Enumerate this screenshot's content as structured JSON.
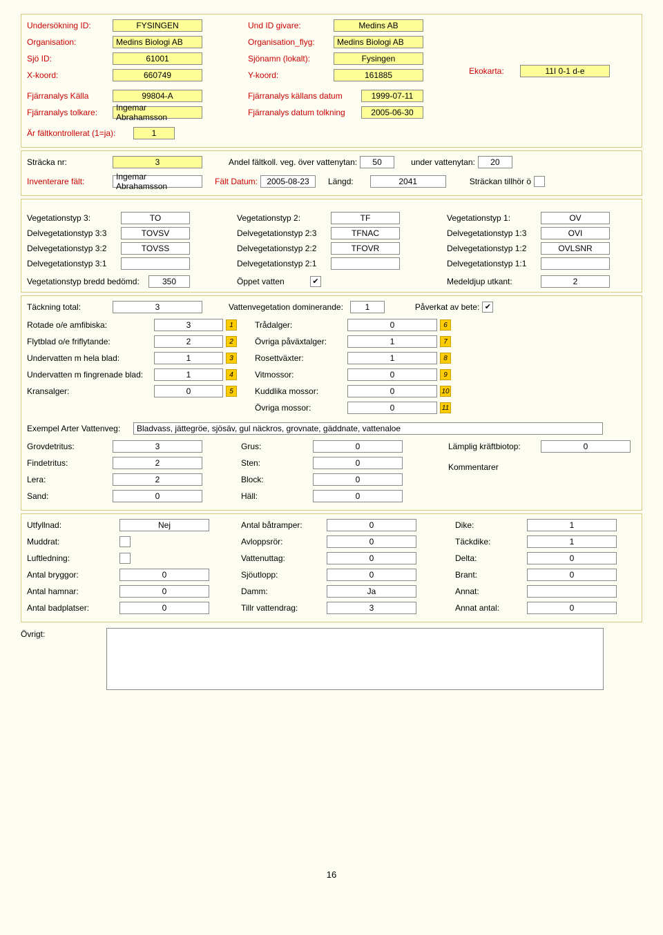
{
  "header": {
    "undersokning_id_lbl": "Undersökning ID:",
    "undersokning_id": "FYSINGEN",
    "organisation_lbl": "Organisation:",
    "organisation": "Medins Biologi AB",
    "sjo_id_lbl": "Sjö ID:",
    "sjo_id": "61001",
    "xkoord_lbl": "X-koord:",
    "xkoord": "660749",
    "und_id_givare_lbl": "Und ID givare:",
    "und_id_givare": "Medins AB",
    "organisation_flyg_lbl": "Organisation_flyg:",
    "organisation_flyg": "Medins Biologi AB",
    "sjonamn_lbl": "Sjönamn (lokalt):",
    "sjonamn": "Fysingen",
    "ykoord_lbl": "Y-koord:",
    "ykoord": "161885",
    "ekokarta_lbl": "Ekokarta:",
    "ekokarta": "11I 0-1 d-e"
  },
  "fjarr": {
    "kalla_lbl": "Fjärranalys Källa",
    "kalla": "99804-A",
    "tolkare_lbl": "Fjärranalys tolkare:",
    "tolkare": "Ingemar Abrahamsson",
    "kallans_datum_lbl": "Fjärranalys källans datum",
    "kallans_datum": "1999-07-11",
    "datum_tolkning_lbl": "Fjärranalys datum tolkning",
    "datum_tolkning": "2005-06-30",
    "faltkontrollerat_lbl": "Är fältkontrollerat (1=ja):",
    "faltkontrollerat": "1"
  },
  "stracka": {
    "nr_lbl": "Sträcka nr:",
    "nr": "3",
    "andel_lbl": "Andel fältkoll. veg. över vattenytan:",
    "andel_over": "50",
    "under_lbl": "under vattenytan:",
    "under": "20",
    "inventerare_lbl": "Inventerare fält:",
    "inventerare": "Ingemar Abrahamsson",
    "falt_datum_lbl": "Fält Datum:",
    "falt_datum": "2005-08-23",
    "langd_lbl": "Längd:",
    "langd": "2041",
    "tillhor_lbl": "Sträckan tillhör ö"
  },
  "veg": {
    "v3_lbl": "Vegetationstyp 3:",
    "v3": "TO",
    "v2_lbl": "Vegetationstyp 2:",
    "v2": "TF",
    "v1_lbl": "Vegetationstyp 1:",
    "v1": "OV",
    "d33_lbl": "Delvegetationstyp 3:3",
    "d33": "TOVSV",
    "d23_lbl": "Delvegetationstyp 2:3",
    "d23": "TFNAC",
    "d13_lbl": "Delvegetationstyp 1:3",
    "d13": "OVI",
    "d32_lbl": "Delvegetationstyp 3:2",
    "d32": "TOVSS",
    "d22_lbl": "Delvegetationstyp 2:2",
    "d22": "TFOVR",
    "d12_lbl": "Delvegetationstyp 1:2",
    "d12": "OVLSNR",
    "d31_lbl": "Delvegetationstyp 3:1",
    "d31": "",
    "d21_lbl": "Delvegetationstyp 2:1",
    "d21": "",
    "d11_lbl": "Delvegetationstyp 1:1",
    "d11": "",
    "bredd_lbl": "Vegetationstyp bredd bedömd:",
    "bredd": "350",
    "oppet_lbl": "Öppet vatten",
    "oppet_checked": "✔",
    "medel_lbl": "Medeldjup utkant:",
    "medel": "2"
  },
  "tack": {
    "total_lbl": "Täckning total:",
    "total": "3",
    "dom_lbl": "Vattenvegetation dominerande:",
    "dom": "1",
    "paverkat_lbl": "Påverkat av bete:",
    "paverkat": "✔",
    "rows_left": [
      {
        "lbl": "Rotade o/e amfibiska:",
        "val": "3",
        "num": "1"
      },
      {
        "lbl": "Flytblad o/e friflytande:",
        "val": "2",
        "num": "2"
      },
      {
        "lbl": "Undervatten m hela blad:",
        "val": "1",
        "num": "3"
      },
      {
        "lbl": "Undervatten m fingrenade blad:",
        "val": "1",
        "num": "4"
      },
      {
        "lbl": "Kransalger:",
        "val": "0",
        "num": "5"
      }
    ],
    "rows_mid": [
      {
        "lbl": "Trådalger:",
        "val": "0",
        "num": "6"
      },
      {
        "lbl": "Övriga påväxtalger:",
        "val": "1",
        "num": "7"
      },
      {
        "lbl": "Rosettväxter:",
        "val": "1",
        "num": "8"
      },
      {
        "lbl": "Vitmossor:",
        "val": "0",
        "num": "9"
      },
      {
        "lbl": "Kuddlika mossor:",
        "val": "0",
        "num": "10"
      },
      {
        "lbl": "Övriga mossor:",
        "val": "0",
        "num": "11"
      }
    ],
    "exempel_lbl": "Exempel Arter Vattenveg:",
    "exempel": "Bladvass, jättegröe, sjösäv, gul näckros, grovnate, gäddnate, vattenaloe"
  },
  "substrat": {
    "left": [
      {
        "lbl": "Grovdetritus:",
        "val": "3"
      },
      {
        "lbl": "Findetritus:",
        "val": "2"
      },
      {
        "lbl": "Lera:",
        "val": "2"
      },
      {
        "lbl": "Sand:",
        "val": "0"
      }
    ],
    "mid": [
      {
        "lbl": "Grus:",
        "val": "0"
      },
      {
        "lbl": "Sten:",
        "val": "0"
      },
      {
        "lbl": "Block:",
        "val": "0"
      },
      {
        "lbl": "Häll:",
        "val": "0"
      }
    ],
    "kraft_lbl": "Lämplig kräftbiotop:",
    "kraft": "0",
    "kommentar_lbl": "Kommentarer"
  },
  "bottom": {
    "left": [
      {
        "lbl": "Utfyllnad:",
        "val": "Nej",
        "type": "fld"
      },
      {
        "lbl": "Muddrat:",
        "val": "",
        "type": "cb"
      },
      {
        "lbl": "Luftledning:",
        "val": "",
        "type": "cb"
      },
      {
        "lbl": "Antal bryggor:",
        "val": "0",
        "type": "fld"
      },
      {
        "lbl": "Antal hamnar:",
        "val": "0",
        "type": "fld"
      },
      {
        "lbl": "Antal badplatser:",
        "val": "0",
        "type": "fld"
      }
    ],
    "mid": [
      {
        "lbl": "Antal båtramper:",
        "val": "0"
      },
      {
        "lbl": "Avloppsrör:",
        "val": "0"
      },
      {
        "lbl": "Vattenuttag:",
        "val": "0"
      },
      {
        "lbl": "Sjöutlopp:",
        "val": "0"
      },
      {
        "lbl": "Damm:",
        "val": "Ja"
      },
      {
        "lbl": "Tillr vattendrag:",
        "val": "3"
      }
    ],
    "right": [
      {
        "lbl": "Dike:",
        "val": "1"
      },
      {
        "lbl": "Täckdike:",
        "val": "1"
      },
      {
        "lbl": "Delta:",
        "val": "0"
      },
      {
        "lbl": "Brant:",
        "val": "0"
      },
      {
        "lbl": "Annat:",
        "val": ""
      },
      {
        "lbl": "Annat antal:",
        "val": "0"
      }
    ]
  },
  "ovrigt_lbl": "Övrigt:",
  "page": "16"
}
